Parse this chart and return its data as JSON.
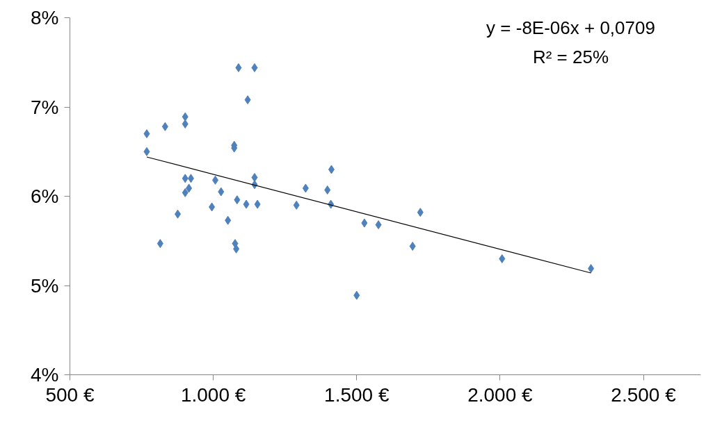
{
  "chart_data": {
    "type": "scatter",
    "grid": false,
    "xlim": [
      500,
      2700
    ],
    "ylim": [
      4,
      8
    ],
    "xticks": [
      {
        "value": 500,
        "label": "500 €"
      },
      {
        "value": 1000,
        "label": "1.000 €"
      },
      {
        "value": 1500,
        "label": "1.500 €"
      },
      {
        "value": 2000,
        "label": "2.000 €"
      },
      {
        "value": 2500,
        "label": "2.500 €"
      }
    ],
    "yticks": [
      {
        "value": 4,
        "label": "4%"
      },
      {
        "value": 5,
        "label": "5%"
      },
      {
        "value": 6,
        "label": "6%"
      },
      {
        "value": 7,
        "label": "7%"
      },
      {
        "value": 8,
        "label": "8%"
      }
    ],
    "annotations": [
      "y = -8E-06x + 0,0709",
      "R² = 25%"
    ],
    "series": [
      {
        "marker": "diamond",
        "color": "#4f81bd",
        "x": [
          768,
          768,
          832,
          815,
          876,
          902,
          902,
          902,
          922,
          915,
          902,
          1007,
          995,
          1027,
          1051,
          1073,
          1073,
          1088,
          1076,
          1080,
          1083,
          1115,
          1120,
          1144,
          1144,
          1144,
          1154,
          1290,
          1322,
          1398,
          1412,
          1410,
          1500,
          1527,
          1576,
          1695,
          1722,
          2007,
          2317
        ],
        "values": [
          6.7,
          6.5,
          6.78,
          5.47,
          5.8,
          6.89,
          6.81,
          6.2,
          6.2,
          6.09,
          6.04,
          6.18,
          5.88,
          6.05,
          5.73,
          6.57,
          6.54,
          7.44,
          5.47,
          5.41,
          5.96,
          5.91,
          7.08,
          7.44,
          6.21,
          6.13,
          5.91,
          5.9,
          6.09,
          6.07,
          6.3,
          5.91,
          4.89,
          5.7,
          5.68,
          5.44,
          5.82,
          5.3,
          5.19
        ]
      },
      {
        "type": "line",
        "color": "#000000",
        "x": [
          768,
          2317
        ],
        "values": [
          6.44,
          5.14
        ]
      }
    ]
  }
}
